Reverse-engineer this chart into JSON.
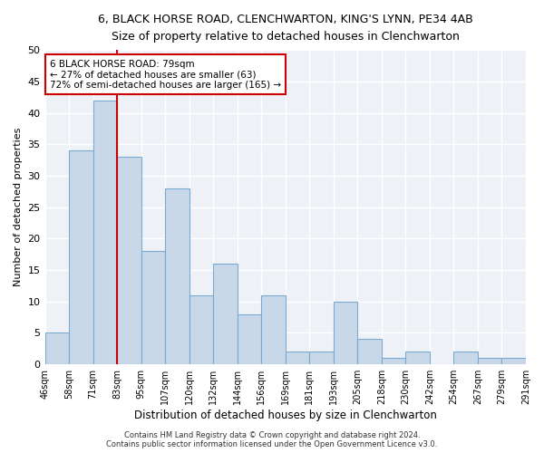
{
  "title": "6, BLACK HORSE ROAD, CLENCHWARTON, KING'S LYNN, PE34 4AB",
  "subtitle": "Size of property relative to detached houses in Clenchwarton",
  "xlabel": "Distribution of detached houses by size in Clenchwarton",
  "ylabel": "Number of detached properties",
  "bar_values": [
    5,
    34,
    42,
    33,
    18,
    28,
    11,
    16,
    8,
    11,
    2,
    2,
    10,
    4,
    1,
    2,
    0,
    2,
    1,
    1
  ],
  "bar_labels": [
    "46sqm",
    "58sqm",
    "71sqm",
    "83sqm",
    "95sqm",
    "107sqm",
    "120sqm",
    "132sqm",
    "144sqm",
    "156sqm",
    "169sqm",
    "181sqm",
    "193sqm",
    "205sqm",
    "218sqm",
    "230sqm",
    "242sqm",
    "254sqm",
    "267sqm",
    "279sqm",
    "291sqm"
  ],
  "bar_color": "#c8d8e8",
  "bar_edge_color": "#7aaacf",
  "bar_edge_width": 0.8,
  "marker_color": "#cc0000",
  "ylim": [
    0,
    50
  ],
  "yticks": [
    0,
    5,
    10,
    15,
    20,
    25,
    30,
    35,
    40,
    45,
    50
  ],
  "annotation_title": "6 BLACK HORSE ROAD: 79sqm",
  "annotation_line1": "← 27% of detached houses are smaller (63)",
  "annotation_line2": "72% of semi-detached houses are larger (165) →",
  "annotation_box_color": "#ffffff",
  "annotation_box_edge": "#cc0000",
  "bg_color": "#eef2f7",
  "grid_color": "#ffffff",
  "footer1": "Contains HM Land Registry data © Crown copyright and database right 2024.",
  "footer2": "Contains public sector information licensed under the Open Government Licence v3.0."
}
